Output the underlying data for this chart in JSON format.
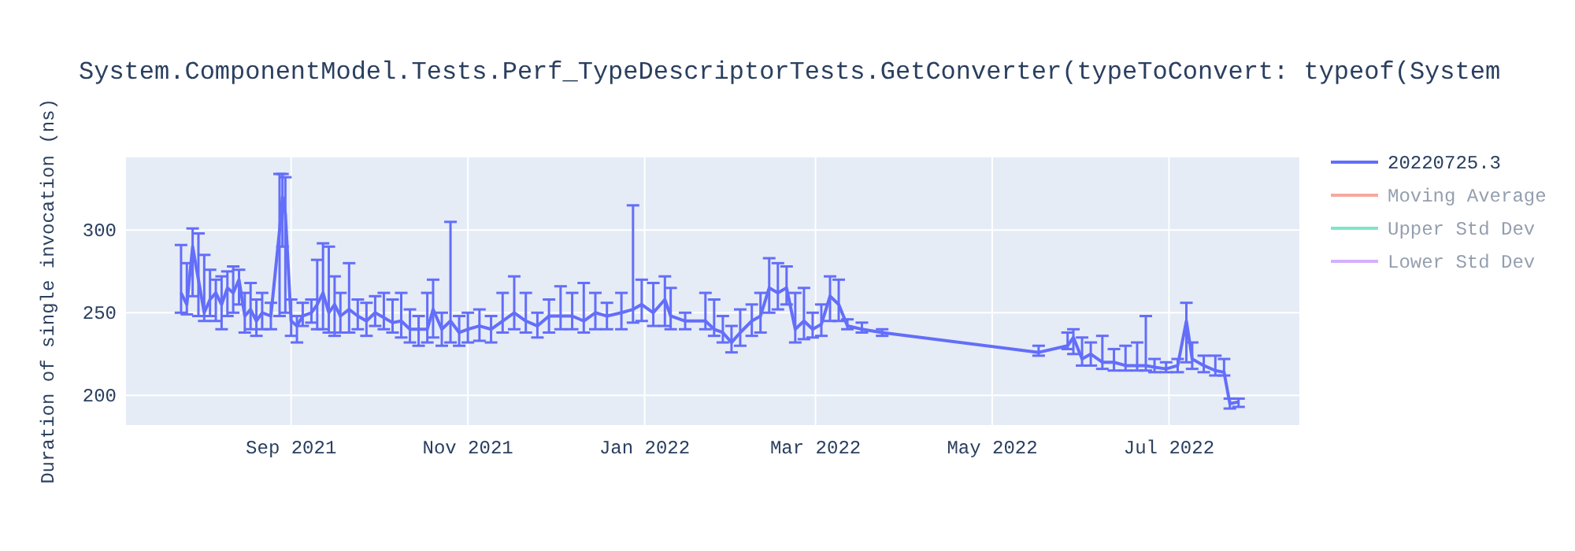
{
  "chart_data": {
    "type": "line",
    "title": "System.ComponentModel.Tests.Perf_TypeDescriptorTests.GetConverter(typeToConvert: typeof(System",
    "ylabel": "Duration of single invocation (ns)",
    "xlim": [
      "2021-07-06",
      "2022-08-15"
    ],
    "ylim": [
      182,
      344
    ],
    "xticks": [
      {
        "value": "2021-09-01",
        "label": "Sep 2021"
      },
      {
        "value": "2021-11-01",
        "label": "Nov 2021"
      },
      {
        "value": "2022-01-01",
        "label": "Jan 2022"
      },
      {
        "value": "2022-03-01",
        "label": "Mar 2022"
      },
      {
        "value": "2022-05-01",
        "label": "May 2022"
      },
      {
        "value": "2022-07-01",
        "label": "Jul 2022"
      }
    ],
    "yticks": [
      200,
      250,
      300
    ],
    "grid": true,
    "legend": "top right",
    "marker": "none",
    "line_style": "solid",
    "series": [
      {
        "name": "20220725.3",
        "color": "#636efa",
        "x": [
          "2021-07-25",
          "2021-07-27",
          "2021-07-29",
          "2021-07-31",
          "2021-08-02",
          "2021-08-04",
          "2021-08-06",
          "2021-08-08",
          "2021-08-10",
          "2021-08-12",
          "2021-08-14",
          "2021-08-16",
          "2021-08-18",
          "2021-08-20",
          "2021-08-22",
          "2021-08-25",
          "2021-08-28",
          "2021-08-29",
          "2021-08-30",
          "2021-09-01",
          "2021-09-03",
          "2021-09-05",
          "2021-09-08",
          "2021-09-10",
          "2021-09-12",
          "2021-09-14",
          "2021-09-16",
          "2021-09-18",
          "2021-09-21",
          "2021-09-24",
          "2021-09-27",
          "2021-09-30",
          "2021-10-03",
          "2021-10-06",
          "2021-10-09",
          "2021-10-12",
          "2021-10-15",
          "2021-10-18",
          "2021-10-20",
          "2021-10-23",
          "2021-10-26",
          "2021-10-29",
          "2021-11-01",
          "2021-11-05",
          "2021-11-09",
          "2021-11-13",
          "2021-11-17",
          "2021-11-21",
          "2021-11-25",
          "2021-11-29",
          "2021-12-03",
          "2021-12-07",
          "2021-12-11",
          "2021-12-15",
          "2021-12-19",
          "2021-12-24",
          "2021-12-28",
          "2021-12-31",
          "2022-01-04",
          "2022-01-08",
          "2022-01-10",
          "2022-01-15",
          "2022-01-22",
          "2022-01-25",
          "2022-01-28",
          "2022-01-31",
          "2022-02-03",
          "2022-02-07",
          "2022-02-10",
          "2022-02-13",
          "2022-02-16",
          "2022-02-19",
          "2022-02-22",
          "2022-02-25",
          "2022-02-28",
          "2022-03-03",
          "2022-03-06",
          "2022-03-09",
          "2022-03-12",
          "2022-03-17",
          "2022-03-24",
          "2022-05-17",
          "2022-05-27",
          "2022-05-29",
          "2022-06-01",
          "2022-06-04",
          "2022-06-08",
          "2022-06-12",
          "2022-06-16",
          "2022-06-20",
          "2022-06-23",
          "2022-06-26",
          "2022-06-30",
          "2022-07-04",
          "2022-07-07",
          "2022-07-09",
          "2022-07-13",
          "2022-07-17",
          "2022-07-20",
          "2022-07-22",
          "2022-07-25"
        ],
        "values": [
          262,
          255,
          290,
          270,
          250,
          258,
          262,
          255,
          265,
          262,
          270,
          248,
          252,
          245,
          250,
          248,
          300,
          320,
          310,
          245,
          242,
          248,
          250,
          255,
          262,
          250,
          255,
          248,
          252,
          248,
          245,
          250,
          247,
          244,
          245,
          240,
          240,
          240,
          252,
          240,
          245,
          238,
          240,
          242,
          240,
          245,
          250,
          245,
          242,
          248,
          248,
          248,
          245,
          250,
          248,
          250,
          252,
          255,
          250,
          258,
          248,
          245,
          245,
          240,
          238,
          232,
          238,
          245,
          248,
          265,
          262,
          265,
          240,
          245,
          240,
          243,
          260,
          255,
          242,
          240,
          238,
          226,
          230,
          235,
          222,
          225,
          220,
          220,
          218,
          218,
          218,
          217,
          216,
          218,
          245,
          222,
          218,
          215,
          214,
          195,
          196
        ],
        "errors": [
          [
            250,
            291
          ],
          [
            249,
            280
          ],
          [
            260,
            301
          ],
          [
            248,
            298
          ],
          [
            245,
            285
          ],
          [
            248,
            276
          ],
          [
            245,
            270
          ],
          [
            240,
            272
          ],
          [
            248,
            275
          ],
          [
            250,
            278
          ],
          [
            255,
            276
          ],
          [
            238,
            262
          ],
          [
            240,
            268
          ],
          [
            236,
            258
          ],
          [
            240,
            262
          ],
          [
            240,
            256
          ],
          [
            248,
            334
          ],
          [
            290,
            334
          ],
          [
            250,
            332
          ],
          [
            236,
            258
          ],
          [
            232,
            248
          ],
          [
            242,
            256
          ],
          [
            244,
            258
          ],
          [
            240,
            282
          ],
          [
            240,
            292
          ],
          [
            238,
            290
          ],
          [
            236,
            272
          ],
          [
            238,
            262
          ],
          [
            238,
            280
          ],
          [
            240,
            258
          ],
          [
            236,
            256
          ],
          [
            242,
            260
          ],
          [
            240,
            262
          ],
          [
            238,
            258
          ],
          [
            235,
            262
          ],
          [
            232,
            252
          ],
          [
            230,
            248
          ],
          [
            232,
            262
          ],
          [
            235,
            270
          ],
          [
            230,
            250
          ],
          [
            232,
            305
          ],
          [
            230,
            248
          ],
          [
            232,
            250
          ],
          [
            233,
            252
          ],
          [
            232,
            248
          ],
          [
            238,
            262
          ],
          [
            240,
            272
          ],
          [
            238,
            262
          ],
          [
            235,
            250
          ],
          [
            238,
            258
          ],
          [
            240,
            266
          ],
          [
            240,
            262
          ],
          [
            238,
            268
          ],
          [
            240,
            262
          ],
          [
            240,
            256
          ],
          [
            240,
            262
          ],
          [
            244,
            315
          ],
          [
            245,
            270
          ],
          [
            242,
            268
          ],
          [
            242,
            272
          ],
          [
            240,
            265
          ],
          [
            240,
            250
          ],
          [
            240,
            262
          ],
          [
            236,
            258
          ],
          [
            232,
            248
          ],
          [
            226,
            242
          ],
          [
            230,
            252
          ],
          [
            236,
            255
          ],
          [
            238,
            262
          ],
          [
            250,
            283
          ],
          [
            252,
            280
          ],
          [
            255,
            278
          ],
          [
            232,
            262
          ],
          [
            234,
            265
          ],
          [
            235,
            250
          ],
          [
            236,
            255
          ],
          [
            245,
            272
          ],
          [
            245,
            270
          ],
          [
            240,
            246
          ],
          [
            238,
            244
          ],
          [
            236,
            240
          ],
          [
            224,
            230
          ],
          [
            228,
            238
          ],
          [
            225,
            240
          ],
          [
            218,
            235
          ],
          [
            218,
            232
          ],
          [
            216,
            236
          ],
          [
            215,
            228
          ],
          [
            215,
            230
          ],
          [
            215,
            232
          ],
          [
            215,
            248
          ],
          [
            214,
            222
          ],
          [
            214,
            220
          ],
          [
            214,
            222
          ],
          [
            220,
            256
          ],
          [
            216,
            232
          ],
          [
            214,
            224
          ],
          [
            212,
            224
          ],
          [
            212,
            222
          ],
          [
            192,
            198
          ],
          [
            193,
            198
          ]
        ]
      },
      {
        "name": "Moving Average",
        "color": "#ef553b"
      },
      {
        "name": "Upper Std Dev",
        "color": "#00cc96"
      },
      {
        "name": "Lower Std Dev",
        "color": "#ab63fa"
      }
    ]
  }
}
